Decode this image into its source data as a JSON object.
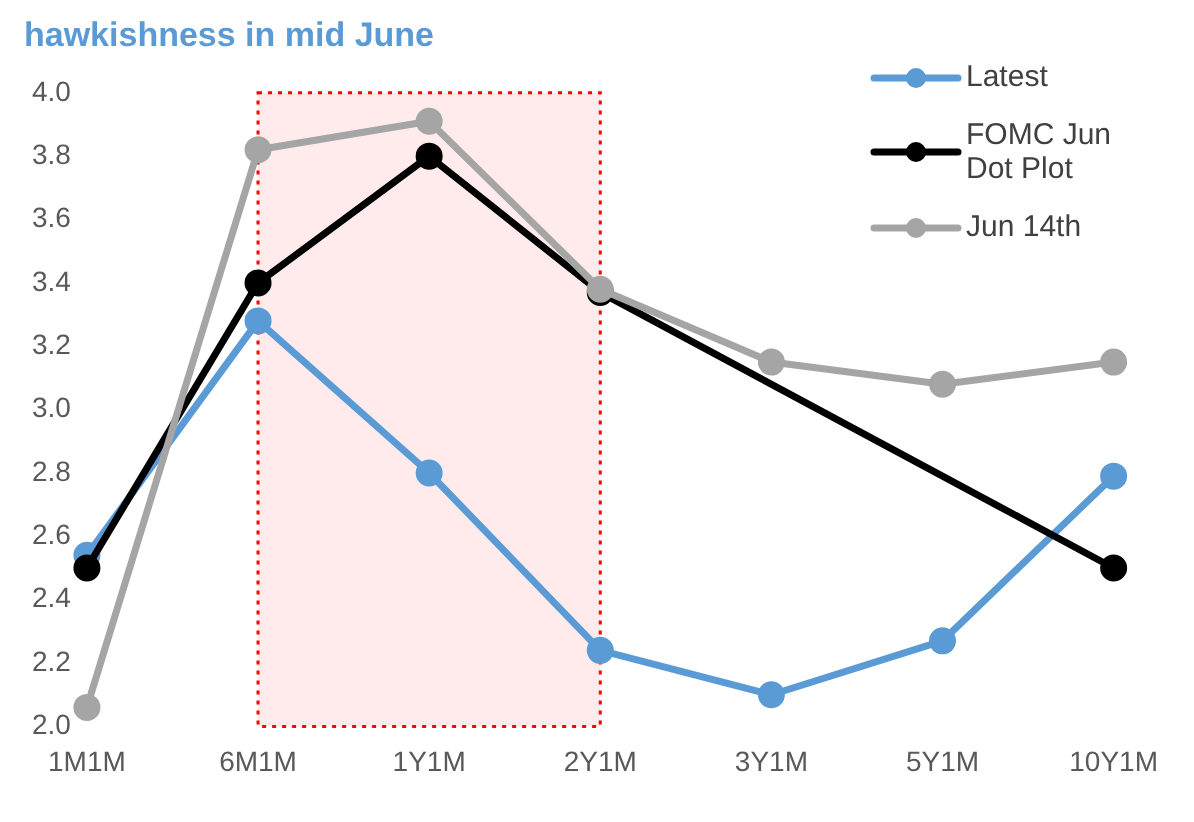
{
  "chart_data": {
    "type": "line",
    "title": "hawkishness in mid June",
    "categories": [
      "1M1M",
      "6M1M",
      "1Y1M",
      "2Y1M",
      "3Y1M",
      "5Y1M",
      "10Y1M"
    ],
    "series": [
      {
        "name": "Latest",
        "color": "#5b9bd5",
        "values": [
          2.54,
          3.28,
          2.8,
          2.24,
          2.1,
          2.27,
          2.79
        ]
      },
      {
        "name": "FOMC Jun Dot Plot",
        "color": "#000000",
        "values": [
          2.5,
          3.4,
          3.8,
          3.37,
          null,
          null,
          2.5
        ]
      },
      {
        "name": "Jun 14th",
        "color": "#a5a5a5",
        "values": [
          2.06,
          3.82,
          3.91,
          3.38,
          3.15,
          3.08,
          3.15
        ]
      }
    ],
    "ylim": [
      2.0,
      4.0
    ],
    "yticks": [
      {
        "value": 2.0,
        "label": "2.0"
      },
      {
        "value": 2.2,
        "label": "2.2"
      },
      {
        "value": 2.4,
        "label": "2.4"
      },
      {
        "value": 2.6,
        "label": "2.6"
      },
      {
        "value": 2.8,
        "label": "2.8"
      },
      {
        "value": 3.0,
        "label": "3.0"
      },
      {
        "value": 3.2,
        "label": "3.2"
      },
      {
        "value": 3.4,
        "label": "3.4"
      },
      {
        "value": 3.6,
        "label": "3.6"
      },
      {
        "value": 3.8,
        "label": "3.8"
      },
      {
        "value": 4.0,
        "label": "4.0"
      }
    ],
    "bands": [
      {
        "axis": "x",
        "from": "6M1M",
        "to": "2Y1M",
        "color": "#ff0000"
      }
    ],
    "grid": false,
    "legend": "top right",
    "marker": "circle",
    "line_style": "solid"
  }
}
